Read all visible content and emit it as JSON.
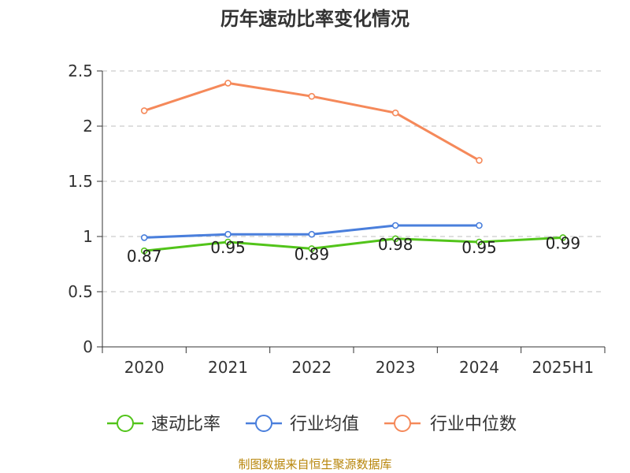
{
  "chart_data": {
    "type": "line",
    "title": "历年速动比率变化情况",
    "categories": [
      "2020",
      "2021",
      "2022",
      "2023",
      "2024",
      "2025H1"
    ],
    "ylim": [
      0,
      2.5
    ],
    "yticks": [
      "0",
      "0.5",
      "1",
      "1.5",
      "2",
      "2.5"
    ],
    "ytick_values": [
      0,
      0.5,
      1,
      1.5,
      2,
      2.5
    ],
    "grid": true,
    "legend_position": "bottom",
    "series": [
      {
        "name": "速动比率",
        "color": "#52c41a",
        "values": [
          0.87,
          0.95,
          0.89,
          0.98,
          0.95,
          0.99
        ],
        "labels": [
          "0.87",
          "0.95",
          "0.89",
          "0.98",
          "0.95",
          "0.99"
        ]
      },
      {
        "name": "行业均值",
        "color": "#4a7fdc",
        "values": [
          0.99,
          1.02,
          1.02,
          1.1,
          1.1,
          null
        ]
      },
      {
        "name": "行业中位数",
        "color": "#f5895a",
        "values": [
          2.14,
          2.39,
          2.27,
          2.12,
          1.69,
          null
        ]
      }
    ]
  },
  "source_text": "制图数据来自恒生聚源数据库"
}
